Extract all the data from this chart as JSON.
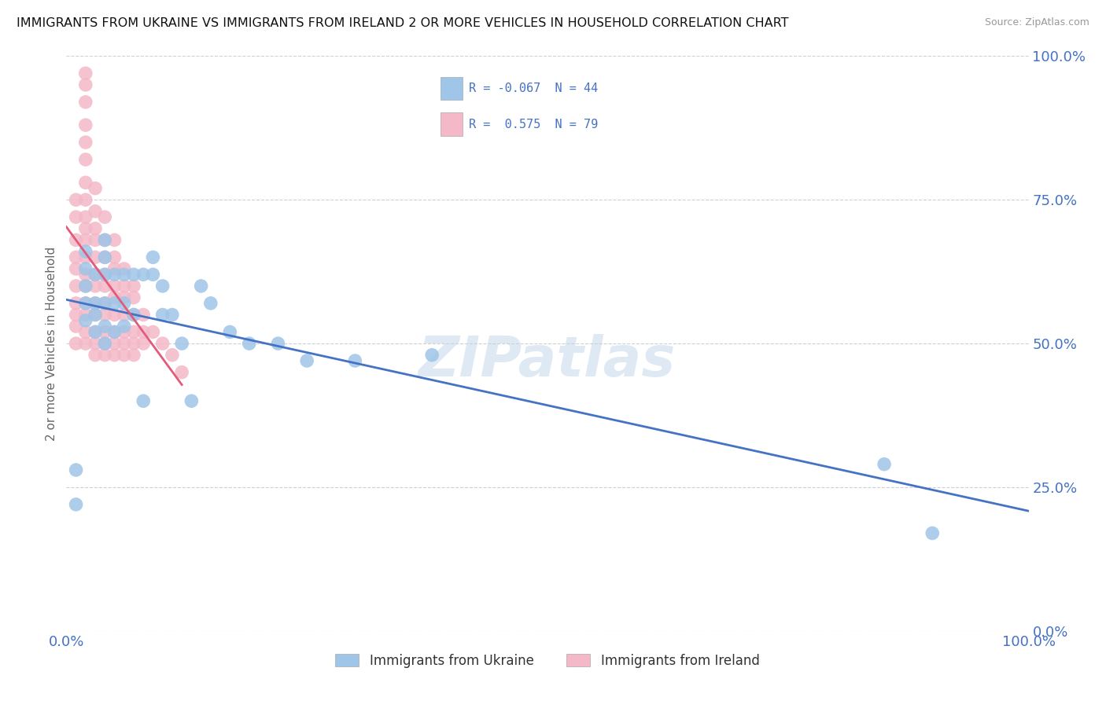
{
  "title": "IMMIGRANTS FROM UKRAINE VS IMMIGRANTS FROM IRELAND 2 OR MORE VEHICLES IN HOUSEHOLD CORRELATION CHART",
  "source": "Source: ZipAtlas.com",
  "ylabel": "2 or more Vehicles in Household",
  "legend_label1": "Immigrants from Ukraine",
  "legend_label2": "Immigrants from Ireland",
  "R_ukraine": -0.067,
  "N_ukraine": 44,
  "R_ireland": 0.575,
  "N_ireland": 79,
  "xlim": [
    0,
    1.0
  ],
  "ylim": [
    0,
    1.0
  ],
  "watermark": "ZIPatlas",
  "ukraine_line_color": "#4472C4",
  "ireland_line_color": "#E05C7A",
  "ukraine_scatter_color": "#9fc5e8",
  "ireland_scatter_color": "#f4b8c8",
  "ukraine_x": [
    0.01,
    0.01,
    0.02,
    0.02,
    0.02,
    0.02,
    0.02,
    0.03,
    0.03,
    0.03,
    0.03,
    0.04,
    0.04,
    0.04,
    0.04,
    0.04,
    0.04,
    0.05,
    0.05,
    0.05,
    0.06,
    0.06,
    0.06,
    0.07,
    0.07,
    0.08,
    0.08,
    0.09,
    0.09,
    0.1,
    0.1,
    0.11,
    0.12,
    0.13,
    0.14,
    0.15,
    0.17,
    0.19,
    0.22,
    0.25,
    0.3,
    0.38,
    0.85,
    0.9
  ],
  "ukraine_y": [
    0.22,
    0.28,
    0.54,
    0.57,
    0.6,
    0.63,
    0.66,
    0.52,
    0.55,
    0.57,
    0.62,
    0.5,
    0.53,
    0.57,
    0.62,
    0.65,
    0.68,
    0.52,
    0.57,
    0.62,
    0.53,
    0.57,
    0.62,
    0.55,
    0.62,
    0.4,
    0.62,
    0.62,
    0.65,
    0.55,
    0.6,
    0.55,
    0.5,
    0.4,
    0.6,
    0.57,
    0.52,
    0.5,
    0.5,
    0.47,
    0.47,
    0.48,
    0.29,
    0.17
  ],
  "ireland_x": [
    0.01,
    0.01,
    0.01,
    0.01,
    0.01,
    0.01,
    0.01,
    0.01,
    0.01,
    0.01,
    0.02,
    0.02,
    0.02,
    0.02,
    0.02,
    0.02,
    0.02,
    0.02,
    0.02,
    0.02,
    0.02,
    0.02,
    0.02,
    0.02,
    0.02,
    0.02,
    0.02,
    0.02,
    0.03,
    0.03,
    0.03,
    0.03,
    0.03,
    0.03,
    0.03,
    0.03,
    0.03,
    0.03,
    0.03,
    0.03,
    0.04,
    0.04,
    0.04,
    0.04,
    0.04,
    0.04,
    0.04,
    0.04,
    0.04,
    0.04,
    0.05,
    0.05,
    0.05,
    0.05,
    0.05,
    0.05,
    0.05,
    0.05,
    0.05,
    0.06,
    0.06,
    0.06,
    0.06,
    0.06,
    0.06,
    0.06,
    0.07,
    0.07,
    0.07,
    0.07,
    0.07,
    0.07,
    0.08,
    0.08,
    0.08,
    0.09,
    0.1,
    0.11,
    0.12
  ],
  "ireland_y": [
    0.5,
    0.53,
    0.55,
    0.57,
    0.6,
    0.63,
    0.65,
    0.68,
    0.72,
    0.75,
    0.5,
    0.52,
    0.55,
    0.57,
    0.6,
    0.62,
    0.65,
    0.68,
    0.7,
    0.72,
    0.75,
    0.78,
    0.82,
    0.85,
    0.88,
    0.92,
    0.95,
    0.97,
    0.48,
    0.5,
    0.52,
    0.55,
    0.57,
    0.6,
    0.62,
    0.65,
    0.68,
    0.7,
    0.73,
    0.77,
    0.48,
    0.5,
    0.52,
    0.55,
    0.57,
    0.6,
    0.62,
    0.65,
    0.68,
    0.72,
    0.48,
    0.5,
    0.52,
    0.55,
    0.58,
    0.6,
    0.63,
    0.65,
    0.68,
    0.48,
    0.5,
    0.52,
    0.55,
    0.58,
    0.6,
    0.63,
    0.48,
    0.5,
    0.52,
    0.55,
    0.58,
    0.6,
    0.5,
    0.52,
    0.55,
    0.52,
    0.5,
    0.48,
    0.45
  ]
}
